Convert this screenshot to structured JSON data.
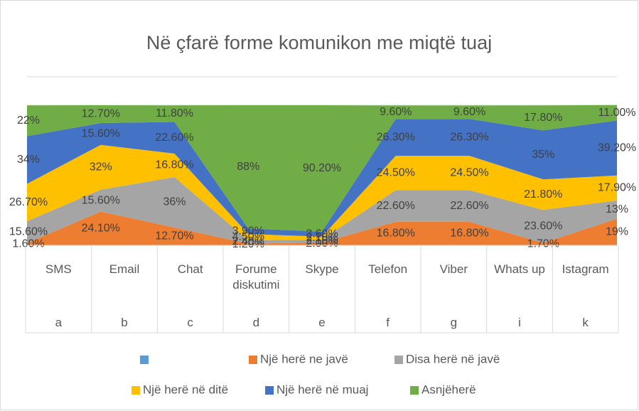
{
  "chart_data": {
    "type": "area",
    "stacked": true,
    "title": "Në çfarë forme komunikon me miqtë tuaj",
    "categories": [
      "SMS",
      "Email",
      "Chat",
      "Forume diskutimi",
      "Skype",
      "Telefon",
      "Viber",
      "Whats up",
      "Istagram"
    ],
    "category_letters": [
      "a",
      "b",
      "c",
      "d",
      "e",
      "f",
      "g",
      "i",
      "k"
    ],
    "series": [
      {
        "name": null,
        "color": "#5b9bd5",
        "values": [
          null,
          null,
          null,
          null,
          null,
          null,
          null,
          null,
          null
        ]
      },
      {
        "name": "Një herë ne javë",
        "color": "#ed7d31",
        "values": [
          1.6,
          24.1,
          12.7,
          1.2,
          2.0,
          16.8,
          16.8,
          1.7,
          19
        ],
        "value_labels": [
          "1.60%",
          "24.10%",
          "12.70%",
          "1.20%",
          "2.00%",
          "16.80%",
          "16.80%",
          "1.70%",
          "19%"
        ]
      },
      {
        "name": "Disa herë në javë",
        "color": "#a5a5a5",
        "values": [
          15.6,
          15.6,
          36,
          2.4,
          2.1,
          22.6,
          22.6,
          23.6,
          13
        ],
        "value_labels": [
          "15.60%",
          "15.60%",
          "36%",
          "2.40%",
          "2.10%",
          "22.60%",
          "22.60%",
          "23.60%",
          "13%"
        ]
      },
      {
        "name": "Një herë në ditë",
        "color": "#ffc000",
        "values": [
          26.7,
          32,
          16.8,
          4.5,
          2.1,
          24.5,
          24.5,
          21.8,
          17.9
        ],
        "value_labels": [
          "26.70%",
          "32%",
          "16.80%",
          "4.50%",
          "2.10%",
          "24.50%",
          "24.50%",
          "21.80%",
          "17.90%"
        ]
      },
      {
        "name": "Një herë në muaj",
        "color": "#4472c4",
        "values": [
          34,
          15.6,
          22.6,
          3.9,
          3.6,
          26.3,
          26.3,
          35,
          39.2
        ],
        "value_labels": [
          "34%",
          "15.60%",
          "22.60%",
          "3.90%",
          "3.60%",
          "26.30%",
          "26.30%",
          "35%",
          "39.20%"
        ]
      },
      {
        "name": "Asnjëherë",
        "color": "#70ad47",
        "values": [
          22,
          12.7,
          11.8,
          88,
          90.2,
          9.6,
          9.6,
          17.8,
          11.0
        ],
        "value_labels": [
          "22%",
          "12.70%",
          "11.80%",
          "88%",
          "90.20%",
          "9.60%",
          "9.60%",
          "17.80%",
          "11.00%"
        ]
      }
    ]
  }
}
